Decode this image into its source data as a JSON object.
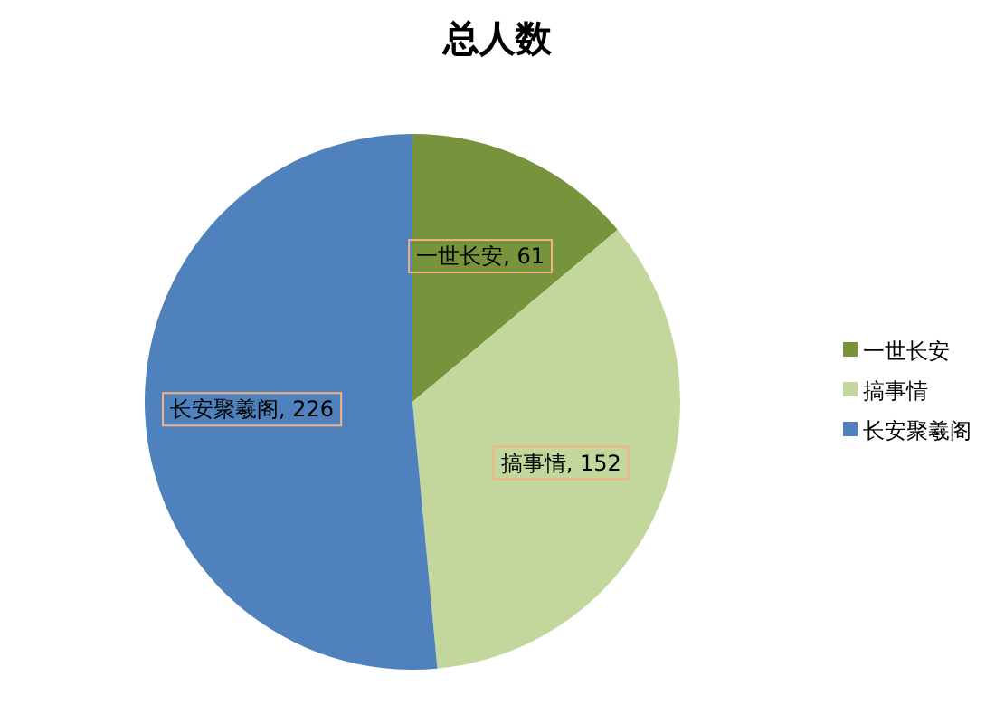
{
  "chart_data": {
    "type": "pie",
    "title": "总人数",
    "categories": [
      "一世长安",
      "搞事情",
      "长安聚羲阁"
    ],
    "values": [
      61,
      152,
      226
    ],
    "value_labels": [
      "一世长安, 61",
      "搞事情, 152",
      "长安聚羲阁, 226"
    ],
    "colors": [
      "#77933c",
      "#c3d69b",
      "#4f81bd"
    ],
    "legend": "right"
  }
}
